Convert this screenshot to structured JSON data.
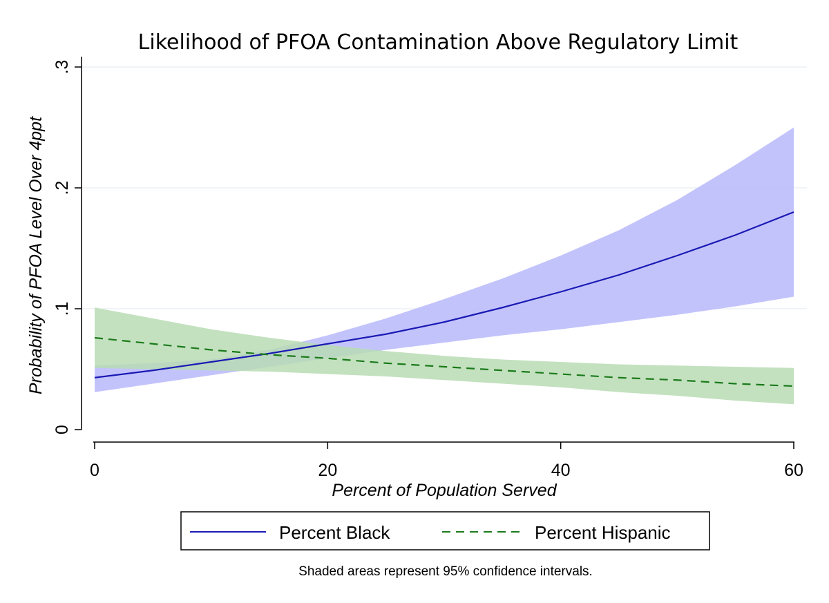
{
  "chart_data": {
    "type": "line",
    "title": "Likelihood of PFOA Contamination Above Regulatory Limit",
    "xlabel": "Percent of Population Served",
    "ylabel": "Probability of PFOA Level Over 4ppt",
    "xlim": [
      0,
      60
    ],
    "ylim": [
      0,
      0.3
    ],
    "xticks": [
      {
        "value": 0,
        "label": "0"
      },
      {
        "value": 20,
        "label": "20"
      },
      {
        "value": 40,
        "label": "40"
      },
      {
        "value": 60,
        "label": "60"
      }
    ],
    "yticks": [
      {
        "value": 0,
        "label": "0"
      },
      {
        "value": 0.1,
        "label": ".1"
      },
      {
        "value": 0.2,
        "label": ".2"
      },
      {
        "value": 0.3,
        "label": ".3"
      }
    ],
    "grid": true,
    "legend_position": "bottom",
    "note": "Shaded areas represent 95% confidence intervals.",
    "series": [
      {
        "name": "Percent Black",
        "color": "#1a1ab4",
        "band_color": "#b8b8fb",
        "line_style": "solid",
        "x": [
          0,
          5,
          10,
          15,
          20,
          25,
          30,
          35,
          40,
          45,
          50,
          55,
          60
        ],
        "y": [
          0.043,
          0.049,
          0.056,
          0.063,
          0.071,
          0.079,
          0.089,
          0.101,
          0.114,
          0.128,
          0.144,
          0.161,
          0.18
        ],
        "lower": [
          0.031,
          0.038,
          0.045,
          0.052,
          0.059,
          0.066,
          0.072,
          0.078,
          0.083,
          0.089,
          0.095,
          0.102,
          0.11
        ],
        "upper": [
          0.053,
          0.055,
          0.058,
          0.066,
          0.078,
          0.092,
          0.108,
          0.125,
          0.144,
          0.165,
          0.19,
          0.219,
          0.25
        ]
      },
      {
        "name": "Percent Hispanic",
        "color": "#1a7a1a",
        "band_color": "#b9dcb4",
        "line_style": "dashed",
        "x": [
          0,
          5,
          10,
          15,
          20,
          25,
          30,
          35,
          40,
          45,
          50,
          55,
          60
        ],
        "y": [
          0.076,
          0.071,
          0.066,
          0.062,
          0.059,
          0.055,
          0.052,
          0.049,
          0.046,
          0.043,
          0.041,
          0.038,
          0.036
        ],
        "lower": [
          0.051,
          0.05,
          0.049,
          0.048,
          0.046,
          0.044,
          0.041,
          0.038,
          0.035,
          0.031,
          0.028,
          0.024,
          0.021
        ],
        "upper": [
          0.101,
          0.092,
          0.083,
          0.076,
          0.07,
          0.065,
          0.061,
          0.058,
          0.056,
          0.054,
          0.053,
          0.052,
          0.051
        ]
      }
    ]
  }
}
